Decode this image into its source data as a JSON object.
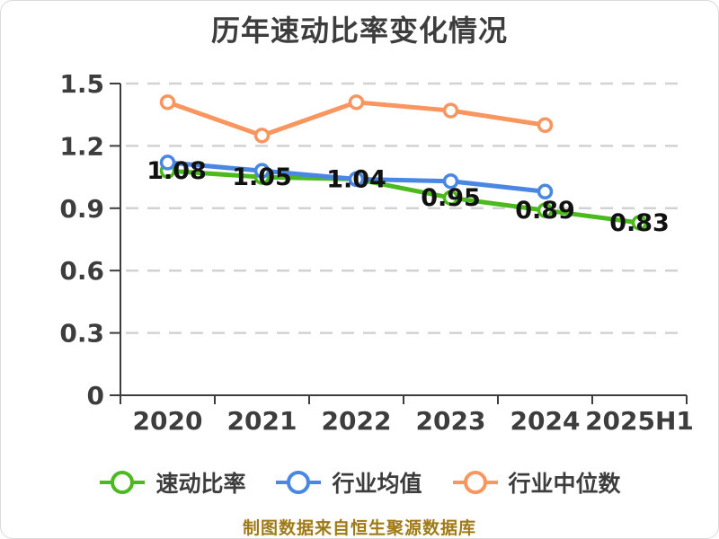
{
  "page": {
    "title": "历年速动比率变化情况",
    "caption": "制图数据来自恒生聚源数据库"
  },
  "colors": {
    "background": "#ffffff",
    "border": "#dadada",
    "title_text": "#3d3d3d",
    "axis_text": "#3d3d3d",
    "gridline": "#d2d2d2",
    "data_label": "#111111",
    "caption_text": "#9e7b16",
    "quick_ratio_green": "#4cba1f",
    "industry_avg_blue": "#4a87e2",
    "industry_median_orange": "#f9965f"
  },
  "chart_data": {
    "type": "line",
    "title": "历年速动比率变化情况",
    "categories": [
      "2020",
      "2021",
      "2022",
      "2023",
      "2024",
      "2025H1"
    ],
    "series": [
      {
        "name": "速动比率",
        "color": "#4cba1f",
        "values": [
          1.08,
          1.05,
          1.04,
          0.95,
          0.89,
          0.83
        ],
        "data_labels": [
          "1.08",
          "1.05",
          "1.04",
          "0.95",
          "0.89",
          "0.83"
        ]
      },
      {
        "name": "行业均值",
        "color": "#4a87e2",
        "values": [
          1.12,
          1.08,
          1.04,
          1.03,
          0.98,
          null
        ],
        "data_labels": null
      },
      {
        "name": "行业中位数",
        "color": "#f9965f",
        "values": [
          1.41,
          1.25,
          1.41,
          1.37,
          1.3,
          null
        ],
        "data_labels": null
      }
    ],
    "ylim": [
      0,
      1.5
    ],
    "yticks": [
      0,
      0.3,
      0.6,
      0.9,
      1.2,
      1.5
    ],
    "grid": true,
    "grid_style": "dashed",
    "legend_position": "bottom",
    "xlabel": "",
    "ylabel": ""
  }
}
